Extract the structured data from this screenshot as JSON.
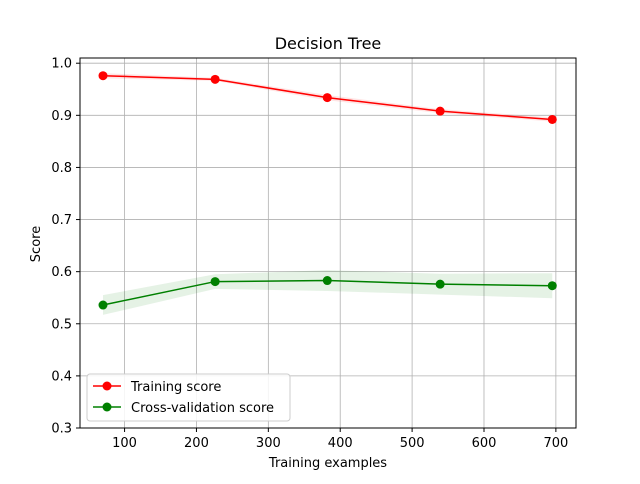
{
  "chart_data": {
    "type": "line",
    "title": "Decision Tree",
    "xlabel": "Training examples",
    "ylabel": "Score",
    "xlim": [
      38,
      728
    ],
    "ylim": [
      0.3,
      1.01
    ],
    "xticks": [
      100,
      200,
      300,
      400,
      500,
      600,
      700
    ],
    "yticks": [
      0.3,
      0.4,
      0.5,
      0.6,
      0.7,
      0.8,
      0.9,
      1.0
    ],
    "xtick_labels": [
      "100",
      "200",
      "300",
      "400",
      "500",
      "600",
      "700"
    ],
    "ytick_labels": [
      "0.3",
      "0.4",
      "0.5",
      "0.6",
      "0.7",
      "0.8",
      "0.9",
      "1.0"
    ],
    "grid": true,
    "legend_position": "lower-left",
    "x": [
      70,
      226,
      382,
      539,
      695
    ],
    "series": [
      {
        "name": "Training score",
        "color": "#ff0000",
        "band_color": "#ff0000",
        "marker": "circle",
        "values": [
          0.976,
          0.969,
          0.934,
          0.908,
          0.892
        ],
        "band_lower": [
          0.971,
          0.966,
          0.929,
          0.904,
          0.888
        ],
        "band_upper": [
          0.981,
          0.972,
          0.939,
          0.912,
          0.896
        ]
      },
      {
        "name": "Cross-validation score",
        "color": "#008000",
        "band_color": "#008000",
        "marker": "circle",
        "values": [
          0.536,
          0.581,
          0.583,
          0.576,
          0.573
        ],
        "band_lower": [
          0.517,
          0.567,
          0.563,
          0.556,
          0.549
        ],
        "band_upper": [
          0.555,
          0.595,
          0.603,
          0.596,
          0.597
        ]
      }
    ]
  }
}
